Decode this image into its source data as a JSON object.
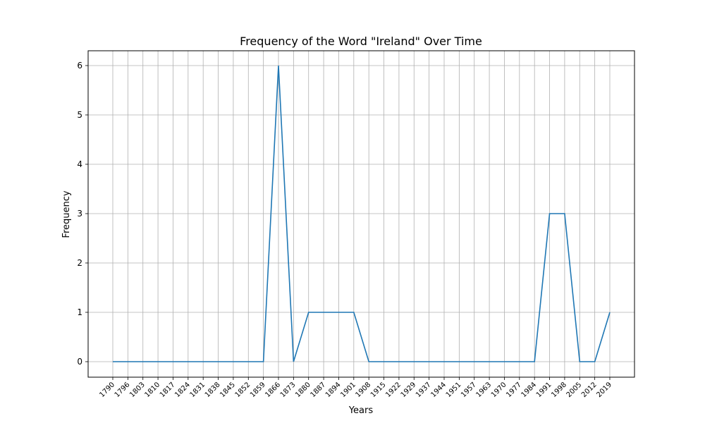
{
  "chart_data": {
    "type": "line",
    "title": "Frequency of the Word \"Ireland\" Over Time",
    "xlabel": "Years",
    "ylabel": "Frequency",
    "categories": [
      "1790",
      "1796",
      "1803",
      "1810",
      "1817",
      "1824",
      "1831",
      "1838",
      "1845",
      "1852",
      "1859",
      "1866",
      "1873",
      "1880",
      "1887",
      "1894",
      "1901",
      "1908",
      "1915",
      "1922",
      "1929",
      "1937",
      "1944",
      "1951",
      "1957",
      "1963",
      "1970",
      "1977",
      "1984",
      "1991",
      "1998",
      "2005",
      "2012",
      "2019"
    ],
    "values": [
      0,
      0,
      0,
      0,
      0,
      0,
      0,
      0,
      0,
      0,
      0,
      6,
      0,
      1,
      1,
      1,
      1,
      0,
      0,
      0,
      0,
      0,
      0,
      0,
      0,
      0,
      0,
      0,
      0,
      3,
      3,
      0,
      0,
      1
    ],
    "yticks": [
      0,
      1,
      2,
      3,
      4,
      5,
      6
    ],
    "ylim": [
      -0.3,
      6.3
    ],
    "grid": true,
    "line_color": "#1f77b4"
  }
}
